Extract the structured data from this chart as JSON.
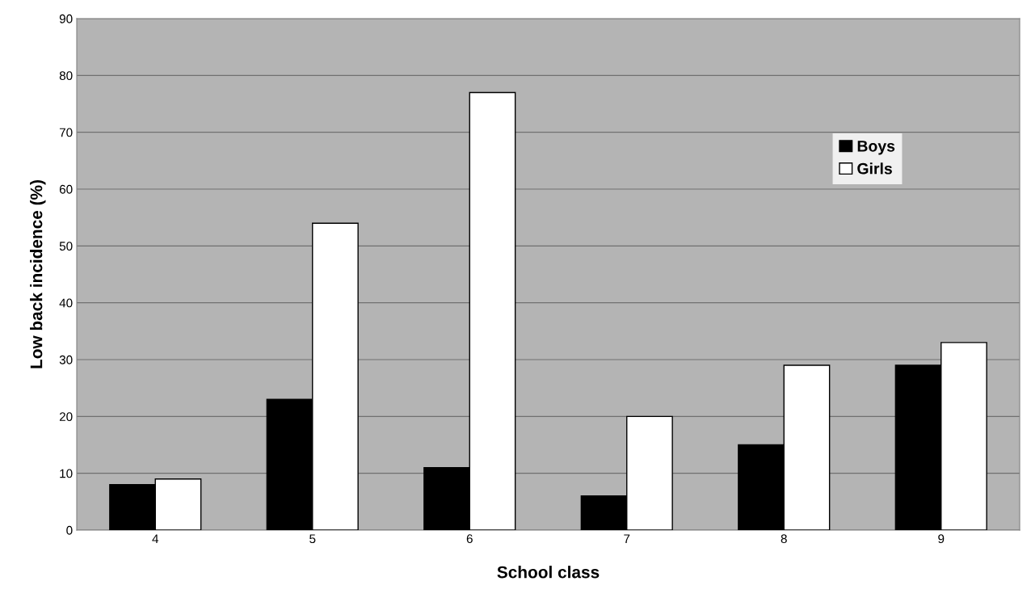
{
  "chart_data": {
    "type": "bar",
    "xlabel": "School class",
    "ylabel": "Low back incidence (%)",
    "categories": [
      "4",
      "5",
      "6",
      "7",
      "8",
      "9"
    ],
    "series": [
      {
        "name": "Boys",
        "color": "#000000",
        "values": [
          8,
          23,
          11,
          6,
          15,
          29
        ]
      },
      {
        "name": "Girls",
        "color": "#ffffff",
        "values": [
          9,
          54,
          77,
          20,
          29,
          33
        ]
      }
    ],
    "ylim": [
      0,
      90
    ],
    "yticks": [
      0,
      10,
      20,
      30,
      40,
      50,
      60,
      70,
      80,
      90
    ],
    "grid": "y",
    "legend": "top right"
  }
}
